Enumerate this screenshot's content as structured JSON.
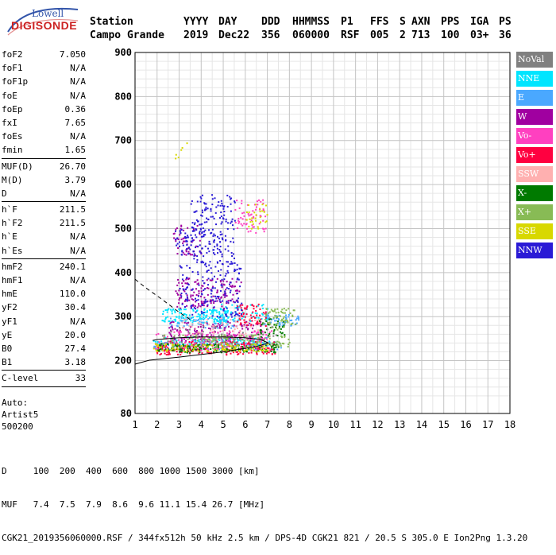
{
  "logo": {
    "line1": "Lowell",
    "line2": "DIGISONDE"
  },
  "header": {
    "row1": [
      "Station",
      "YYYY",
      "DAY",
      "DDD",
      "HHMMSS",
      "P1",
      "FFS",
      "S",
      "AXN",
      "PPS",
      "IGA",
      "PS"
    ],
    "row2": [
      "Campo Grande",
      "2019",
      "Dec22",
      "356",
      "060000",
      "RSF",
      "005",
      "2",
      "713",
      "100",
      "03+",
      "36"
    ]
  },
  "params": {
    "group1": [
      {
        "label": "foF2",
        "value": "7.050"
      },
      {
        "label": "foF1",
        "value": "N/A"
      },
      {
        "label": "foF1p",
        "value": "N/A"
      },
      {
        "label": "foE",
        "value": "N/A"
      },
      {
        "label": "foEp",
        "value": "0.36"
      },
      {
        "label": "fxI",
        "value": "7.65"
      },
      {
        "label": "foEs",
        "value": "N/A"
      },
      {
        "label": "fmin",
        "value": "1.65"
      }
    ],
    "group2": [
      {
        "label": "MUF(D)",
        "value": "26.70"
      },
      {
        "label": "M(D)",
        "value": "3.79"
      },
      {
        "label": "D",
        "value": "N/A"
      }
    ],
    "group3": [
      {
        "label": "h`F",
        "value": "211.5"
      },
      {
        "label": "h`F2",
        "value": "211.5"
      },
      {
        "label": "h`E",
        "value": "N/A"
      },
      {
        "label": "h`Es",
        "value": "N/A"
      }
    ],
    "group4": [
      {
        "label": "hmF2",
        "value": "240.1"
      },
      {
        "label": "hmF1",
        "value": "N/A"
      },
      {
        "label": "hmE",
        "value": "110.0"
      },
      {
        "label": "yF2",
        "value": "30.4"
      },
      {
        "label": "yF1",
        "value": "N/A"
      },
      {
        "label": "yE",
        "value": "20.0"
      },
      {
        "label": "B0",
        "value": "27.4"
      },
      {
        "label": "B1",
        "value": "3.18"
      }
    ],
    "group5": [
      {
        "label": "C-level",
        "value": "33"
      }
    ],
    "notes": [
      "Auto:",
      "Artist5",
      "500200"
    ]
  },
  "legend": [
    {
      "label": "NoVal",
      "color": "#808080"
    },
    {
      "label": "NNE",
      "color": "#00e5ff"
    },
    {
      "label": "E",
      "color": "#4aa8ff"
    },
    {
      "label": "W",
      "color": "#a000a0"
    },
    {
      "label": "Vo-",
      "color": "#ff40c0"
    },
    {
      "label": "Vo+",
      "color": "#ff0040"
    },
    {
      "label": "SSW",
      "color": "#ffb0b0"
    },
    {
      "label": "X-",
      "color": "#007a00"
    },
    {
      "label": "X+",
      "color": "#88bb55"
    },
    {
      "label": "SSE",
      "color": "#d8d800"
    },
    {
      "label": "NNW",
      "color": "#2a1ad6"
    }
  ],
  "footer": {
    "line1": "D     100  200  400  600  800 1000 1500 3000 [km]",
    "line2": "MUF   7.4  7.5  7.9  8.6  9.6 11.1 15.4 26.7 [MHz]",
    "line3": "CGK21_2019356060000.RSF / 344fx512h 50 kHz 2.5 km / DPS-4D CGK21 821 / 20.5 S 305.0 E Ion2Png 1.3.20"
  },
  "chart_data": {
    "type": "scatter",
    "title": "",
    "xlabel": "",
    "ylabel": "",
    "xlim": [
      1,
      18
    ],
    "ylim": [
      80,
      900
    ],
    "x_ticks": [
      1,
      2,
      3,
      4,
      5,
      6,
      7,
      8,
      9,
      10,
      11,
      12,
      13,
      14,
      15,
      16,
      17,
      18
    ],
    "y_ticks": [
      80,
      200,
      300,
      400,
      500,
      600,
      700,
      800,
      900
    ],
    "grid": true,
    "legend_position": "right",
    "series": [
      {
        "name": "NNE",
        "color": "#00e5ff",
        "clusters": [
          {
            "x": [
              1.8,
              7.2
            ],
            "y": [
              235,
              255
            ],
            "n": 140
          },
          {
            "x": [
              2.2,
              5.2
            ],
            "y": [
              285,
              320
            ],
            "n": 160
          },
          {
            "x": [
              4.5,
              7.0
            ],
            "y": [
              290,
              330
            ],
            "n": 60
          }
        ]
      },
      {
        "name": "E",
        "color": "#4aa8ff",
        "clusters": [
          {
            "x": [
              1.8,
              7.6
            ],
            "y": [
              225,
              245
            ],
            "n": 120
          },
          {
            "x": [
              6.8,
              8.4
            ],
            "y": [
              280,
              310
            ],
            "n": 60
          },
          {
            "x": [
              2.5,
              5.5
            ],
            "y": [
              275,
              300
            ],
            "n": 60
          }
        ]
      },
      {
        "name": "W",
        "color": "#a000a0",
        "clusters": [
          {
            "x": [
              2.5,
              6.8
            ],
            "y": [
              245,
              290
            ],
            "n": 160
          },
          {
            "x": [
              2.8,
              5.8
            ],
            "y": [
              320,
              390
            ],
            "n": 150
          },
          {
            "x": [
              2.7,
              4.0
            ],
            "y": [
              440,
              510
            ],
            "n": 50
          }
        ]
      },
      {
        "name": "Vo-",
        "color": "#ff40c0",
        "clusters": [
          {
            "x": [
              1.9,
              7.2
            ],
            "y": [
              225,
              270
            ],
            "n": 180
          },
          {
            "x": [
              5.5,
              6.9
            ],
            "y": [
              490,
              570
            ],
            "n": 60
          }
        ]
      },
      {
        "name": "Vo+",
        "color": "#ff0040",
        "clusters": [
          {
            "x": [
              1.9,
              7.4
            ],
            "y": [
              215,
              245
            ],
            "n": 180
          },
          {
            "x": [
              5.6,
              7.0
            ],
            "y": [
              280,
              330
            ],
            "n": 60
          }
        ]
      },
      {
        "name": "SSW",
        "color": "#ffb0b0",
        "clusters": [
          {
            "x": [
              3.0,
              6.8
            ],
            "y": [
              250,
              300
            ],
            "n": 60
          }
        ]
      },
      {
        "name": "X-",
        "color": "#007a00",
        "clusters": [
          {
            "x": [
              2.0,
              7.5
            ],
            "y": [
              220,
              240
            ],
            "n": 140
          },
          {
            "x": [
              6.5,
              7.8
            ],
            "y": [
              255,
              300
            ],
            "n": 40
          }
        ]
      },
      {
        "name": "X+",
        "color": "#88bb55",
        "clusters": [
          {
            "x": [
              2.0,
              8.0
            ],
            "y": [
              230,
              260
            ],
            "n": 140
          },
          {
            "x": [
              6.8,
              8.3
            ],
            "y": [
              270,
              320
            ],
            "n": 60
          }
        ]
      },
      {
        "name": "SSE",
        "color": "#d8d800",
        "clusters": [
          {
            "x": [
              1.8,
              7.0
            ],
            "y": [
              222,
              240
            ],
            "n": 100
          },
          {
            "x": [
              6.0,
              7.0
            ],
            "y": [
              500,
              560
            ],
            "n": 30
          },
          {
            "x": [
              2.8,
              3.4
            ],
            "y": [
              660,
              700
            ],
            "n": 6
          }
        ]
      },
      {
        "name": "NNW",
        "color": "#2a1ad6",
        "clusters": [
          {
            "x": [
              3.0,
              5.8
            ],
            "y": [
              300,
              420
            ],
            "n": 160
          },
          {
            "x": [
              3.5,
              5.5
            ],
            "y": [
              420,
              580
            ],
            "n": 180
          },
          {
            "x": [
              2.8,
              4.6
            ],
            "y": [
              440,
              500
            ],
            "n": 60
          }
        ]
      },
      {
        "name": "NoVal",
        "color": "#808080",
        "clusters": [
          {
            "x": [
              2.2,
              7.5
            ],
            "y": [
              240,
              280
            ],
            "n": 40
          }
        ]
      }
    ],
    "curves": [
      {
        "name": "true-height profile",
        "style": "solid",
        "points": [
          [
            1.0,
            192
          ],
          [
            1.65,
            201
          ],
          [
            3,
            208
          ],
          [
            5,
            220
          ],
          [
            6.5,
            232
          ],
          [
            7.05,
            240.1
          ],
          [
            6.7,
            248
          ],
          [
            6,
            252
          ],
          [
            5,
            254
          ],
          [
            4,
            254
          ],
          [
            3,
            252
          ],
          [
            2,
            248
          ],
          [
            1.8,
            246
          ]
        ]
      },
      {
        "name": "topside model",
        "style": "dashed",
        "points": [
          [
            1.0,
            385
          ],
          [
            1.5,
            365
          ],
          [
            2.2,
            340
          ],
          [
            3.0,
            310
          ],
          [
            3.6,
            290
          ]
        ]
      }
    ]
  }
}
